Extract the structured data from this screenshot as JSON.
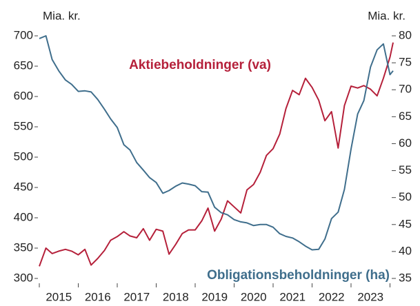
{
  "chart_data": {
    "type": "line",
    "y_axis_label": "Mia. kr.",
    "y2_axis_label": "Mia. kr.",
    "x": [
      2015.0,
      2015.17,
      2015.33,
      2015.5,
      2015.67,
      2015.83,
      2016.0,
      2016.17,
      2016.33,
      2016.5,
      2016.67,
      2016.83,
      2017.0,
      2017.17,
      2017.33,
      2017.5,
      2017.67,
      2017.83,
      2018.0,
      2018.17,
      2018.33,
      2018.5,
      2018.67,
      2018.83,
      2019.0,
      2019.17,
      2019.33,
      2019.5,
      2019.67,
      2019.83,
      2020.0,
      2020.17,
      2020.33,
      2020.5,
      2020.67,
      2020.83,
      2021.0,
      2021.17,
      2021.33,
      2021.5,
      2021.67,
      2021.83,
      2022.0,
      2022.17,
      2022.33,
      2022.5,
      2022.67,
      2022.83,
      2023.0,
      2023.17,
      2023.33,
      2023.5,
      2023.67,
      2023.83,
      2024.0,
      2024.08
    ],
    "series": [
      {
        "name": "Aktiebeholdninger (va)",
        "color": "#b5203a",
        "axis": "y",
        "values": [
          320,
          350,
          341,
          345,
          348,
          345,
          339,
          348,
          322,
          333,
          346,
          363,
          369,
          377,
          370,
          367,
          382,
          363,
          381,
          378,
          340,
          356,
          374,
          380,
          380,
          395,
          416,
          378,
          398,
          428,
          418,
          408,
          446,
          455,
          475,
          503,
          514,
          538,
          580,
          610,
          603,
          630,
          615,
          594,
          560,
          575,
          515,
          585,
          617,
          614,
          618,
          612,
          601,
          630,
          665,
          689
        ]
      },
      {
        "name": "Obligationsbeholdninger (ha)",
        "color": "#3f6e8c",
        "axis": "y2",
        "values": [
          79.5,
          80,
          75.6,
          73.5,
          71.8,
          71.0,
          69.7,
          69.8,
          69.6,
          68.2,
          66.4,
          64.6,
          63,
          59.8,
          58.8,
          56.5,
          55.1,
          53.7,
          52.8,
          50.8,
          51.3,
          52.1,
          52.7,
          52.5,
          52.2,
          51.1,
          51,
          48.2,
          47.2,
          46.8,
          45.9,
          45.5,
          45.3,
          44.8,
          45,
          45,
          44.5,
          43.3,
          42.8,
          42.5,
          41.8,
          41.0,
          40.3,
          40.4,
          42.3,
          46.1,
          47.3,
          51.5,
          59,
          65.5,
          68,
          74.2,
          77.4,
          78.5,
          72.8,
          73.5
        ]
      }
    ],
    "xlim": [
      2015,
      2024.08
    ],
    "xticks": [
      {
        "value": 2015.5,
        "label": "2015"
      },
      {
        "value": 2016.5,
        "label": "2016"
      },
      {
        "value": 2017.5,
        "label": "2017"
      },
      {
        "value": 2018.5,
        "label": "2018"
      },
      {
        "value": 2019.5,
        "label": "2019"
      },
      {
        "value": 2020.5,
        "label": "2020"
      },
      {
        "value": 2021.5,
        "label": "2021"
      },
      {
        "value": 2022.5,
        "label": "2022"
      },
      {
        "value": 2023.5,
        "label": "2023"
      }
    ],
    "ylim": [
      300,
      700
    ],
    "yticks": [
      300,
      350,
      400,
      450,
      500,
      550,
      600,
      650,
      700
    ],
    "y2lim": [
      35,
      80
    ],
    "y2ticks": [
      35,
      40,
      45,
      50,
      55,
      60,
      65,
      70,
      75,
      80
    ],
    "grid": false
  }
}
